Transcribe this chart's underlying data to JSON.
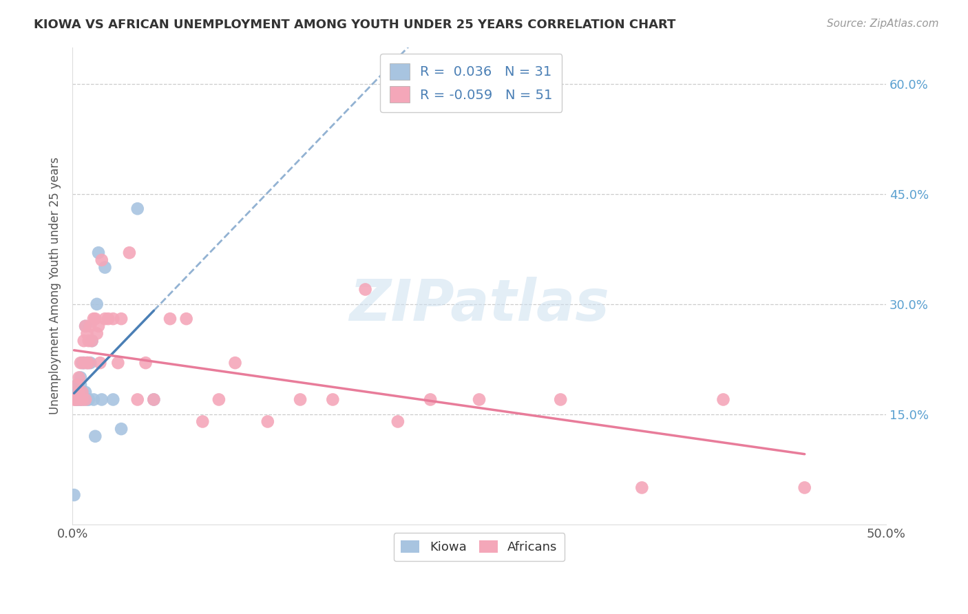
{
  "title": "KIOWA VS AFRICAN UNEMPLOYMENT AMONG YOUTH UNDER 25 YEARS CORRELATION CHART",
  "source": "Source: ZipAtlas.com",
  "ylabel": "Unemployment Among Youth under 25 years",
  "xlim": [
    0.0,
    0.5
  ],
  "ylim": [
    0.0,
    0.65
  ],
  "xtick_vals": [
    0.0,
    0.1,
    0.2,
    0.3,
    0.4,
    0.5
  ],
  "xtick_labels": [
    "0.0%",
    "",
    "",
    "",
    "",
    "50.0%"
  ],
  "ytick_vals": [
    0.15,
    0.3,
    0.45,
    0.6
  ],
  "ytick_right_labels": [
    "15.0%",
    "30.0%",
    "45.0%",
    "60.0%"
  ],
  "kiowa_color": "#a8c4e0",
  "african_color": "#f4a7b9",
  "kiowa_line_color": "#4a7fb5",
  "african_line_color": "#e87c9a",
  "kiowa_R": 0.036,
  "kiowa_N": 31,
  "african_R": -0.059,
  "african_N": 51,
  "legend_text_color": "#4a7fb5",
  "watermark": "ZIPatlas",
  "kiowa_x": [
    0.001,
    0.002,
    0.002,
    0.003,
    0.003,
    0.004,
    0.004,
    0.005,
    0.005,
    0.005,
    0.006,
    0.006,
    0.007,
    0.007,
    0.008,
    0.008,
    0.009,
    0.009,
    0.01,
    0.011,
    0.012,
    0.013,
    0.014,
    0.015,
    0.016,
    0.018,
    0.02,
    0.025,
    0.03,
    0.04,
    0.05
  ],
  "kiowa_y": [
    0.04,
    0.17,
    0.18,
    0.17,
    0.19,
    0.17,
    0.18,
    0.17,
    0.19,
    0.2,
    0.18,
    0.22,
    0.17,
    0.22,
    0.18,
    0.27,
    0.22,
    0.17,
    0.17,
    0.22,
    0.25,
    0.17,
    0.12,
    0.3,
    0.37,
    0.17,
    0.35,
    0.17,
    0.13,
    0.43,
    0.17
  ],
  "african_x": [
    0.001,
    0.002,
    0.003,
    0.003,
    0.004,
    0.004,
    0.005,
    0.005,
    0.006,
    0.006,
    0.007,
    0.007,
    0.008,
    0.008,
    0.009,
    0.009,
    0.01,
    0.01,
    0.011,
    0.012,
    0.013,
    0.014,
    0.015,
    0.016,
    0.017,
    0.018,
    0.02,
    0.022,
    0.025,
    0.028,
    0.03,
    0.035,
    0.04,
    0.045,
    0.05,
    0.06,
    0.07,
    0.08,
    0.09,
    0.1,
    0.12,
    0.14,
    0.16,
    0.18,
    0.2,
    0.22,
    0.25,
    0.3,
    0.35,
    0.4,
    0.45
  ],
  "african_y": [
    0.17,
    0.17,
    0.17,
    0.19,
    0.18,
    0.2,
    0.17,
    0.22,
    0.17,
    0.18,
    0.22,
    0.25,
    0.17,
    0.27,
    0.26,
    0.22,
    0.22,
    0.25,
    0.27,
    0.25,
    0.28,
    0.28,
    0.26,
    0.27,
    0.22,
    0.36,
    0.28,
    0.28,
    0.28,
    0.22,
    0.28,
    0.37,
    0.17,
    0.22,
    0.17,
    0.28,
    0.28,
    0.14,
    0.17,
    0.22,
    0.14,
    0.17,
    0.17,
    0.32,
    0.14,
    0.17,
    0.17,
    0.17,
    0.05,
    0.17,
    0.05
  ]
}
